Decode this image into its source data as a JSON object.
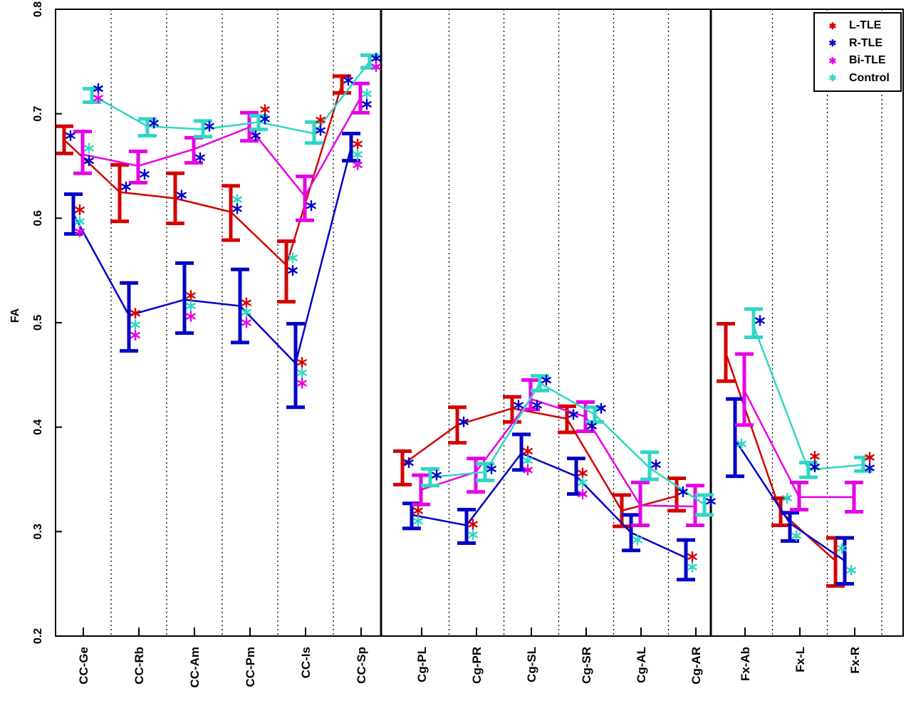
{
  "legend": {
    "position": "top-right",
    "marker_glyph": "✱"
  },
  "chart_data": {
    "type": "line",
    "subtype": "grouped-errorbar",
    "title": "",
    "ylabel": "FA",
    "ylim": [
      0.2,
      0.8
    ],
    "yticks": [
      "0.2",
      "0.3",
      "0.4",
      "0.5",
      "0.6",
      "0.7",
      "0.8"
    ],
    "grid": "dotted vertical lines between categories; solid vertical separators between tract groups",
    "legend_entries": [
      "L-TLE",
      "R-TLE",
      "Bi-TLE",
      "Control"
    ],
    "groups": [
      {
        "name": "CC",
        "categories": [
          "CC-Ge",
          "CC-Rb",
          "CC-Am",
          "CC-Pm",
          "CC-Is",
          "CC-Sp"
        ]
      },
      {
        "name": "Cg",
        "categories": [
          "Cg-PL",
          "Cg-PR",
          "Cg-SL",
          "Cg-SR",
          "Cg-AL",
          "Cg-AR"
        ]
      },
      {
        "name": "Fx",
        "categories": [
          "Fx-Ab",
          "Fx-L",
          "Fx-R"
        ]
      }
    ],
    "series": [
      {
        "name": "L-TLE",
        "color": "#d40000",
        "points": [
          {
            "category": "CC-Ge",
            "mean": 0.675,
            "lo": 0.662,
            "hi": 0.688,
            "stars": [
              {
                "series": "R-TLE",
                "value": 0.679
              }
            ]
          },
          {
            "category": "CC-Rb",
            "mean": 0.625,
            "lo": 0.597,
            "hi": 0.651,
            "stars": [
              {
                "series": "R-TLE",
                "value": 0.63
              }
            ]
          },
          {
            "category": "CC-Am",
            "mean": 0.619,
            "lo": 0.595,
            "hi": 0.643,
            "stars": [
              {
                "series": "R-TLE",
                "value": 0.622
              }
            ]
          },
          {
            "category": "CC-Pm",
            "mean": 0.606,
            "lo": 0.579,
            "hi": 0.631,
            "stars": [
              {
                "series": "Control",
                "value": 0.618
              },
              {
                "series": "R-TLE",
                "value": 0.609
              }
            ]
          },
          {
            "category": "CC-Is",
            "mean": 0.555,
            "lo": 0.52,
            "hi": 0.578,
            "stars": [
              {
                "series": "Control",
                "value": 0.562
              },
              {
                "series": "R-TLE",
                "value": 0.55
              }
            ]
          },
          {
            "category": "CC-Sp",
            "mean": 0.728,
            "lo": 0.72,
            "hi": 0.736,
            "stars": [
              {
                "series": "R-TLE",
                "value": 0.732
              }
            ]
          },
          {
            "category": "Cg-PL",
            "mean": 0.364,
            "lo": 0.345,
            "hi": 0.377,
            "stars": [
              {
                "series": "R-TLE",
                "value": 0.366
              }
            ]
          },
          {
            "category": "Cg-PR",
            "mean": 0.402,
            "lo": 0.385,
            "hi": 0.419,
            "stars": [
              {
                "series": "R-TLE",
                "value": 0.405
              }
            ]
          },
          {
            "category": "Cg-SL",
            "mean": 0.418,
            "lo": 0.405,
            "hi": 0.429,
            "stars": [
              {
                "series": "R-TLE",
                "value": 0.421
              }
            ]
          },
          {
            "category": "Cg-SR",
            "mean": 0.408,
            "lo": 0.395,
            "hi": 0.42,
            "stars": [
              {
                "series": "R-TLE",
                "value": 0.412
              }
            ]
          },
          {
            "category": "Cg-AL",
            "mean": 0.32,
            "lo": 0.305,
            "hi": 0.335,
            "stars": []
          },
          {
            "category": "Cg-AR",
            "mean": 0.334,
            "lo": 0.32,
            "hi": 0.351,
            "stars": [
              {
                "series": "R-TLE",
                "value": 0.338
              }
            ]
          },
          {
            "category": "Fx-Ab",
            "mean": 0.471,
            "lo": 0.444,
            "hi": 0.499,
            "stars": []
          },
          {
            "category": "Fx-L",
            "mean": 0.319,
            "lo": 0.306,
            "hi": 0.332,
            "stars": [
              {
                "series": "Control",
                "value": 0.332
              }
            ]
          },
          {
            "category": "Fx-R",
            "mean": 0.272,
            "lo": 0.248,
            "hi": 0.294,
            "stars": [
              {
                "series": "Control",
                "value": 0.284
              }
            ]
          }
        ]
      },
      {
        "name": "R-TLE",
        "color": "#0000c8",
        "points": [
          {
            "category": "CC-Ge",
            "mean": 0.604,
            "lo": 0.585,
            "hi": 0.623,
            "stars": [
              {
                "series": "L-TLE",
                "value": 0.608
              },
              {
                "series": "Control",
                "value": 0.597
              },
              {
                "series": "Bi-TLE",
                "value": 0.587
              }
            ]
          },
          {
            "category": "CC-Rb",
            "mean": 0.507,
            "lo": 0.473,
            "hi": 0.538,
            "stars": [
              {
                "series": "L-TLE",
                "value": 0.509
              },
              {
                "series": "Control",
                "value": 0.498
              },
              {
                "series": "Bi-TLE",
                "value": 0.488
              }
            ]
          },
          {
            "category": "CC-Am",
            "mean": 0.522,
            "lo": 0.49,
            "hi": 0.557,
            "stars": [
              {
                "series": "L-TLE",
                "value": 0.526
              },
              {
                "series": "Control",
                "value": 0.516
              },
              {
                "series": "Bi-TLE",
                "value": 0.506
              }
            ]
          },
          {
            "category": "CC-Pm",
            "mean": 0.516,
            "lo": 0.481,
            "hi": 0.551,
            "stars": [
              {
                "series": "L-TLE",
                "value": 0.519
              },
              {
                "series": "Control",
                "value": 0.51
              },
              {
                "series": "Bi-TLE",
                "value": 0.5
              }
            ]
          },
          {
            "category": "CC-Is",
            "mean": 0.461,
            "lo": 0.419,
            "hi": 0.499,
            "stars": [
              {
                "series": "L-TLE",
                "value": 0.462
              },
              {
                "series": "Control",
                "value": 0.452
              },
              {
                "series": "Bi-TLE",
                "value": 0.442
              }
            ]
          },
          {
            "category": "CC-Sp",
            "mean": 0.668,
            "lo": 0.655,
            "hi": 0.681,
            "stars": [
              {
                "series": "L-TLE",
                "value": 0.671
              },
              {
                "series": "Control",
                "value": 0.661
              },
              {
                "series": "Bi-TLE",
                "value": 0.651
              }
            ]
          },
          {
            "category": "Cg-PL",
            "mean": 0.316,
            "lo": 0.303,
            "hi": 0.327,
            "stars": [
              {
                "series": "L-TLE",
                "value": 0.32
              },
              {
                "series": "Control",
                "value": 0.31
              }
            ]
          },
          {
            "category": "Cg-PR",
            "mean": 0.306,
            "lo": 0.289,
            "hi": 0.321,
            "stars": [
              {
                "series": "L-TLE",
                "value": 0.307
              },
              {
                "series": "Control",
                "value": 0.297
              }
            ]
          },
          {
            "category": "Cg-SL",
            "mean": 0.375,
            "lo": 0.359,
            "hi": 0.393,
            "stars": [
              {
                "series": "L-TLE",
                "value": 0.377
              },
              {
                "series": "Control",
                "value": 0.368
              },
              {
                "series": "Bi-TLE",
                "value": 0.359
              }
            ]
          },
          {
            "category": "Cg-SR",
            "mean": 0.353,
            "lo": 0.336,
            "hi": 0.37,
            "stars": [
              {
                "series": "L-TLE",
                "value": 0.356
              },
              {
                "series": "Control",
                "value": 0.347
              },
              {
                "series": "Bi-TLE",
                "value": 0.336
              }
            ]
          },
          {
            "category": "Cg-AL",
            "mean": 0.299,
            "lo": 0.282,
            "hi": 0.316,
            "stars": [
              {
                "series": "Control",
                "value": 0.292
              }
            ]
          },
          {
            "category": "Cg-AR",
            "mean": 0.275,
            "lo": 0.254,
            "hi": 0.292,
            "stars": [
              {
                "series": "L-TLE",
                "value": 0.276
              },
              {
                "series": "Control",
                "value": 0.266
              }
            ]
          },
          {
            "category": "Fx-Ab",
            "mean": 0.388,
            "lo": 0.353,
            "hi": 0.427,
            "stars": [
              {
                "series": "Control",
                "value": 0.384
              }
            ]
          },
          {
            "category": "Fx-L",
            "mean": 0.308,
            "lo": 0.291,
            "hi": 0.318,
            "stars": [
              {
                "series": "Control",
                "value": 0.296
              }
            ]
          },
          {
            "category": "Fx-R",
            "mean": 0.272,
            "lo": 0.25,
            "hi": 0.294,
            "stars": [
              {
                "series": "Control",
                "value": 0.263
              }
            ]
          }
        ]
      },
      {
        "name": "Bi-TLE",
        "color": "#e600e6",
        "points": [
          {
            "category": "CC-Ge",
            "mean": 0.661,
            "lo": 0.643,
            "hi": 0.683,
            "stars": [
              {
                "series": "Control",
                "value": 0.667
              },
              {
                "series": "R-TLE",
                "value": 0.655
              }
            ]
          },
          {
            "category": "CC-Rb",
            "mean": 0.65,
            "lo": 0.634,
            "hi": 0.664,
            "stars": [
              {
                "series": "R-TLE",
                "value": 0.642
              }
            ]
          },
          {
            "category": "CC-Am",
            "mean": 0.666,
            "lo": 0.653,
            "hi": 0.677,
            "stars": [
              {
                "series": "R-TLE",
                "value": 0.658
              }
            ]
          },
          {
            "category": "CC-Pm",
            "mean": 0.687,
            "lo": 0.674,
            "hi": 0.701,
            "stars": [
              {
                "series": "R-TLE",
                "value": 0.679
              }
            ]
          },
          {
            "category": "CC-Is",
            "mean": 0.621,
            "lo": 0.598,
            "hi": 0.64,
            "stars": [
              {
                "series": "R-TLE",
                "value": 0.612
              }
            ]
          },
          {
            "category": "CC-Sp",
            "mean": 0.715,
            "lo": 0.701,
            "hi": 0.729,
            "stars": [
              {
                "series": "Control",
                "value": 0.719
              },
              {
                "series": "R-TLE",
                "value": 0.709
              }
            ]
          },
          {
            "category": "Cg-PL",
            "mean": 0.34,
            "lo": 0.326,
            "hi": 0.354,
            "stars": []
          },
          {
            "category": "Cg-PR",
            "mean": 0.357,
            "lo": 0.338,
            "hi": 0.37,
            "stars": []
          },
          {
            "category": "Cg-SL",
            "mean": 0.427,
            "lo": 0.417,
            "hi": 0.445,
            "stars": [
              {
                "series": "R-TLE",
                "value": 0.421
              }
            ]
          },
          {
            "category": "Cg-SR",
            "mean": 0.41,
            "lo": 0.396,
            "hi": 0.424,
            "stars": [
              {
                "series": "R-TLE",
                "value": 0.401
              }
            ]
          },
          {
            "category": "Cg-AL",
            "mean": 0.325,
            "lo": 0.306,
            "hi": 0.347,
            "stars": []
          },
          {
            "category": "Cg-AR",
            "mean": 0.324,
            "lo": 0.306,
            "hi": 0.344,
            "stars": []
          },
          {
            "category": "Fx-Ab",
            "mean": 0.435,
            "lo": 0.402,
            "hi": 0.47,
            "stars": []
          },
          {
            "category": "Fx-L",
            "mean": 0.333,
            "lo": 0.321,
            "hi": 0.347,
            "stars": []
          },
          {
            "category": "Fx-R",
            "mean": 0.333,
            "lo": 0.319,
            "hi": 0.347,
            "stars": []
          }
        ]
      },
      {
        "name": "Control",
        "color": "#2fd6c6",
        "points": [
          {
            "category": "CC-Ge",
            "mean": 0.718,
            "lo": 0.711,
            "hi": 0.724,
            "stars": [
              {
                "series": "R-TLE",
                "value": 0.724
              },
              {
                "series": "Bi-TLE",
                "value": 0.715
              }
            ]
          },
          {
            "category": "CC-Rb",
            "mean": 0.688,
            "lo": 0.679,
            "hi": 0.695,
            "stars": [
              {
                "series": "R-TLE",
                "value": 0.691
              }
            ]
          },
          {
            "category": "CC-Am",
            "mean": 0.685,
            "lo": 0.678,
            "hi": 0.693,
            "stars": [
              {
                "series": "R-TLE",
                "value": 0.688
              }
            ]
          },
          {
            "category": "CC-Pm",
            "mean": 0.692,
            "lo": 0.685,
            "hi": 0.698,
            "stars": [
              {
                "series": "L-TLE",
                "value": 0.704
              },
              {
                "series": "R-TLE",
                "value": 0.695
              }
            ]
          },
          {
            "category": "CC-Is",
            "mean": 0.681,
            "lo": 0.672,
            "hi": 0.692,
            "stars": [
              {
                "series": "L-TLE",
                "value": 0.694
              },
              {
                "series": "R-TLE",
                "value": 0.684
              }
            ]
          },
          {
            "category": "CC-Sp",
            "mean": 0.75,
            "lo": 0.744,
            "hi": 0.756,
            "stars": [
              {
                "series": "R-TLE",
                "value": 0.753
              },
              {
                "series": "Bi-TLE",
                "value": 0.745
              }
            ]
          },
          {
            "category": "Cg-PL",
            "mean": 0.352,
            "lo": 0.344,
            "hi": 0.36,
            "stars": [
              {
                "series": "R-TLE",
                "value": 0.354
              }
            ]
          },
          {
            "category": "Cg-PR",
            "mean": 0.357,
            "lo": 0.349,
            "hi": 0.365,
            "stars": [
              {
                "series": "R-TLE",
                "value": 0.36
              }
            ]
          },
          {
            "category": "Cg-SL",
            "mean": 0.442,
            "lo": 0.435,
            "hi": 0.449,
            "stars": [
              {
                "series": "R-TLE",
                "value": 0.445
              }
            ]
          },
          {
            "category": "Cg-SR",
            "mean": 0.412,
            "lo": 0.405,
            "hi": 0.419,
            "stars": [
              {
                "series": "R-TLE",
                "value": 0.418
              }
            ]
          },
          {
            "category": "Cg-AL",
            "mean": 0.361,
            "lo": 0.35,
            "hi": 0.376,
            "stars": [
              {
                "series": "R-TLE",
                "value": 0.364
              }
            ]
          },
          {
            "category": "Cg-AR",
            "mean": 0.326,
            "lo": 0.316,
            "hi": 0.335,
            "stars": [
              {
                "series": "R-TLE",
                "value": 0.329
              }
            ]
          },
          {
            "category": "Fx-Ab",
            "mean": 0.497,
            "lo": 0.486,
            "hi": 0.513,
            "stars": [
              {
                "series": "R-TLE",
                "value": 0.502
              }
            ]
          },
          {
            "category": "Fx-L",
            "mean": 0.359,
            "lo": 0.352,
            "hi": 0.366,
            "stars": [
              {
                "series": "L-TLE",
                "value": 0.372
              },
              {
                "series": "R-TLE",
                "value": 0.362
              }
            ]
          },
          {
            "category": "Fx-R",
            "mean": 0.364,
            "lo": 0.358,
            "hi": 0.371,
            "stars": [
              {
                "series": "L-TLE",
                "value": 0.371
              },
              {
                "series": "R-TLE",
                "value": 0.361
              }
            ]
          }
        ]
      }
    ]
  }
}
